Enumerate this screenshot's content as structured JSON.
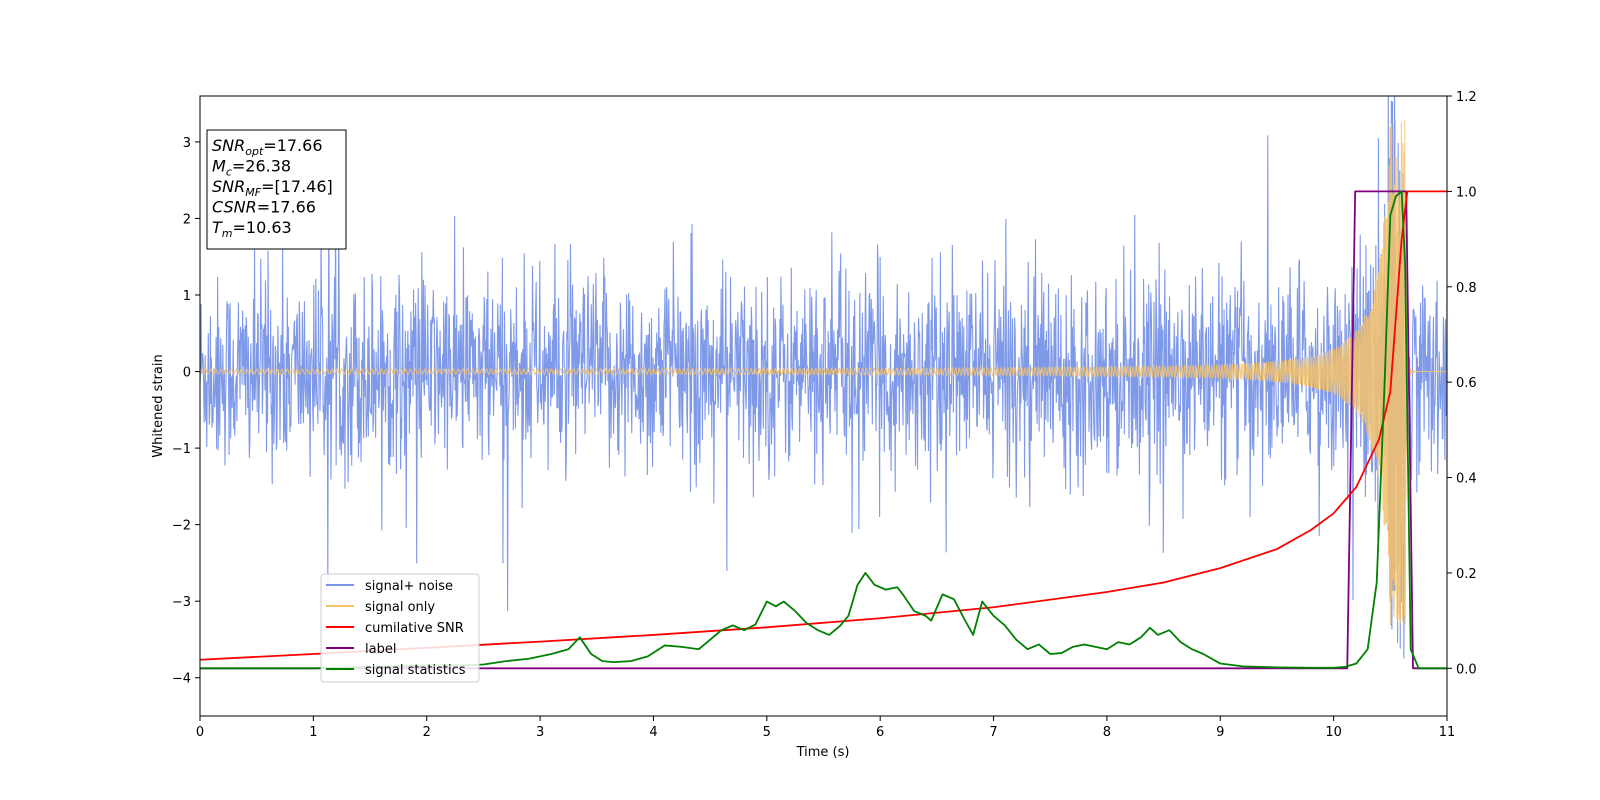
{
  "chart_data": {
    "type": "line",
    "title": "",
    "xlabel": "Time (s)",
    "ylabel": "Whitened strain",
    "xlim": [
      0,
      11
    ],
    "ylim": [
      -4.5,
      3.6
    ],
    "y2lim": [
      -0.1,
      1.2
    ],
    "x_ticks": [
      "0",
      "1",
      "2",
      "3",
      "4",
      "5",
      "6",
      "7",
      "8",
      "9",
      "10",
      "11"
    ],
    "y_ticks": [
      "−4",
      "−3",
      "−2",
      "−1",
      "0",
      "1",
      "2",
      "3"
    ],
    "y2_ticks": [
      "0.0",
      "0.2",
      "0.4",
      "0.6",
      "0.8",
      "1.0",
      "1.2"
    ],
    "info_box": [
      {
        "name": "SNR",
        "sub": "opt",
        "value": "=17.66"
      },
      {
        "name": "M",
        "sub": "c",
        "value": "=26.38"
      },
      {
        "name": "SNR",
        "sub": "MF",
        "value": "=[17.46]"
      },
      {
        "name": "CSNR",
        "sub": "",
        "value": "=17.66"
      },
      {
        "name": "T",
        "sub": "m",
        "value": "=10.63"
      }
    ],
    "legend_position": "lower-left",
    "series": [
      {
        "name": "signal+ noise",
        "color": "#7b96e8",
        "axis": "left",
        "description_envelope": {
          "typical_amplitude": 1.6,
          "peak_max": 3.45,
          "peak_min": -3.4
        }
      },
      {
        "name": "signal only",
        "color": "#f5c26b",
        "axis": "left",
        "chirp": {
          "start_amplitude": 0.03,
          "peak_time": 10.6,
          "peak_amplitude": 3.3
        }
      },
      {
        "name": "cumilative SNR",
        "color": "#ff0000",
        "axis": "right",
        "x": [
          0,
          1,
          2,
          3,
          4,
          5,
          6,
          7,
          8,
          8.5,
          9,
          9.5,
          9.8,
          10,
          10.2,
          10.4,
          10.5,
          10.6,
          10.65,
          11
        ],
        "y": [
          0.018,
          0.03,
          0.043,
          0.056,
          0.07,
          0.086,
          0.105,
          0.128,
          0.16,
          0.18,
          0.21,
          0.25,
          0.29,
          0.325,
          0.38,
          0.48,
          0.58,
          0.9,
          1.0,
          1.0
        ]
      },
      {
        "name": "label",
        "color": "#800080",
        "axis": "right",
        "x": [
          0,
          10.12,
          10.19,
          10.64,
          10.7,
          11
        ],
        "y": [
          0,
          0,
          1,
          1,
          0,
          0
        ]
      },
      {
        "name": "signal statistics",
        "color": "#008000",
        "axis": "right",
        "x": [
          0,
          0.5,
          1,
          1.5,
          2,
          2.3,
          2.5,
          2.7,
          2.9,
          3.1,
          3.25,
          3.35,
          3.45,
          3.55,
          3.65,
          3.8,
          3.95,
          4.1,
          4.25,
          4.4,
          4.5,
          4.6,
          4.7,
          4.8,
          4.9,
          5.0,
          5.08,
          5.15,
          5.25,
          5.35,
          5.45,
          5.55,
          5.65,
          5.72,
          5.8,
          5.87,
          5.95,
          6.05,
          6.15,
          6.2,
          6.3,
          6.4,
          6.45,
          6.55,
          6.65,
          6.75,
          6.82,
          6.9,
          7.0,
          7.1,
          7.2,
          7.3,
          7.4,
          7.5,
          7.6,
          7.7,
          7.8,
          7.9,
          8.0,
          8.1,
          8.2,
          8.3,
          8.38,
          8.45,
          8.55,
          8.65,
          8.75,
          8.85,
          9.0,
          9.2,
          9.5,
          9.8,
          10.0,
          10.1,
          10.2,
          10.3,
          10.38,
          10.45,
          10.5,
          10.55,
          10.6,
          10.63,
          10.68,
          10.75,
          11
        ],
        "y": [
          0,
          0,
          0,
          0.003,
          0.006,
          0.006,
          0.008,
          0.015,
          0.02,
          0.03,
          0.04,
          0.065,
          0.03,
          0.015,
          0.013,
          0.015,
          0.025,
          0.048,
          0.045,
          0.04,
          0.06,
          0.08,
          0.09,
          0.08,
          0.092,
          0.14,
          0.13,
          0.14,
          0.12,
          0.095,
          0.08,
          0.07,
          0.09,
          0.11,
          0.175,
          0.2,
          0.175,
          0.165,
          0.17,
          0.155,
          0.12,
          0.11,
          0.1,
          0.155,
          0.145,
          0.1,
          0.07,
          0.14,
          0.11,
          0.09,
          0.06,
          0.04,
          0.05,
          0.03,
          0.032,
          0.045,
          0.05,
          0.045,
          0.04,
          0.055,
          0.05,
          0.065,
          0.085,
          0.07,
          0.08,
          0.055,
          0.04,
          0.03,
          0.01,
          0.004,
          0.002,
          0.001,
          0.001,
          0.003,
          0.01,
          0.04,
          0.18,
          0.6,
          0.95,
          0.99,
          1.0,
          0.85,
          0.04,
          0.0,
          0.0
        ]
      }
    ]
  }
}
